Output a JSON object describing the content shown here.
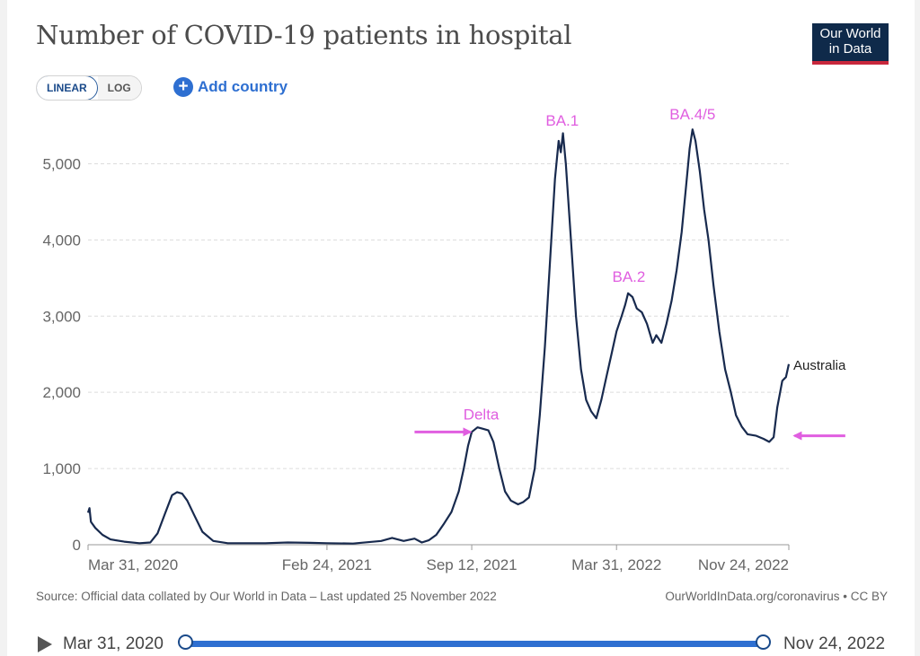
{
  "header": {
    "title": "Number of COVID-19 patients in hospital",
    "logo_line1": "Our World",
    "logo_line2": "in Data"
  },
  "controls": {
    "linear_label": "LINEAR",
    "log_label": "LOG",
    "add_country_label": "Add country",
    "active_scale": "linear"
  },
  "footer": {
    "source": "Source: Official data collated by Our World in Data – Last updated 25 November 2022",
    "credit": "OurWorldInData.org/coronavirus • CC BY"
  },
  "timeline": {
    "start_label": "Mar 31, 2020",
    "end_label": "Nov 24, 2022"
  },
  "chart_data": {
    "type": "line",
    "title": "Number of COVID-19 patients in hospital",
    "ylim": [
      0,
      5500
    ],
    "xlim": [
      "2020-03-31",
      "2022-11-24"
    ],
    "yticks": [
      0,
      1000,
      2000,
      3000,
      4000,
      5000
    ],
    "ytick_labels": [
      "0",
      "1,000",
      "2,000",
      "3,000",
      "4,000",
      "5,000"
    ],
    "xticks": [
      "2020-03-31",
      "2021-02-24",
      "2021-09-12",
      "2022-03-31",
      "2022-11-24"
    ],
    "xtick_labels": [
      "Mar 31, 2020",
      "Feb 24, 2021",
      "Sep 12, 2021",
      "Mar 31, 2022",
      "Nov 24, 2022"
    ],
    "grid": "horizontal dashed",
    "line_color": "#182a4e",
    "annotation_color": "#e05ee0",
    "series": [
      {
        "name": "Australia",
        "points": [
          [
            "2020-03-31",
            420
          ],
          [
            "2020-04-02",
            480
          ],
          [
            "2020-04-04",
            300
          ],
          [
            "2020-04-10",
            220
          ],
          [
            "2020-04-20",
            130
          ],
          [
            "2020-05-01",
            70
          ],
          [
            "2020-05-20",
            40
          ],
          [
            "2020-06-10",
            20
          ],
          [
            "2020-06-25",
            30
          ],
          [
            "2020-07-05",
            150
          ],
          [
            "2020-07-15",
            400
          ],
          [
            "2020-07-25",
            650
          ],
          [
            "2020-08-01",
            690
          ],
          [
            "2020-08-08",
            670
          ],
          [
            "2020-08-15",
            580
          ],
          [
            "2020-08-25",
            380
          ],
          [
            "2020-09-05",
            170
          ],
          [
            "2020-09-20",
            50
          ],
          [
            "2020-10-10",
            20
          ],
          [
            "2020-12-01",
            20
          ],
          [
            "2021-01-01",
            30
          ],
          [
            "2021-02-01",
            25
          ],
          [
            "2021-02-24",
            20
          ],
          [
            "2021-04-01",
            15
          ],
          [
            "2021-05-10",
            50
          ],
          [
            "2021-05-25",
            90
          ],
          [
            "2021-06-10",
            50
          ],
          [
            "2021-06-25",
            80
          ],
          [
            "2021-07-05",
            30
          ],
          [
            "2021-07-15",
            60
          ],
          [
            "2021-07-25",
            130
          ],
          [
            "2021-08-05",
            280
          ],
          [
            "2021-08-15",
            430
          ],
          [
            "2021-08-25",
            700
          ],
          [
            "2021-09-01",
            1000
          ],
          [
            "2021-09-07",
            1300
          ],
          [
            "2021-09-12",
            1480
          ],
          [
            "2021-09-20",
            1540
          ],
          [
            "2021-09-28",
            1520
          ],
          [
            "2021-10-05",
            1500
          ],
          [
            "2021-10-12",
            1350
          ],
          [
            "2021-10-20",
            1000
          ],
          [
            "2021-10-28",
            700
          ],
          [
            "2021-11-05",
            580
          ],
          [
            "2021-11-15",
            530
          ],
          [
            "2021-11-22",
            560
          ],
          [
            "2021-11-30",
            620
          ],
          [
            "2021-12-08",
            1000
          ],
          [
            "2021-12-15",
            1700
          ],
          [
            "2021-12-22",
            2600
          ],
          [
            "2021-12-29",
            3700
          ],
          [
            "2022-01-05",
            4800
          ],
          [
            "2022-01-10",
            5300
          ],
          [
            "2022-01-13",
            5150
          ],
          [
            "2022-01-16",
            5400
          ],
          [
            "2022-01-20",
            5000
          ],
          [
            "2022-01-27",
            4000
          ],
          [
            "2022-02-03",
            3000
          ],
          [
            "2022-02-10",
            2300
          ],
          [
            "2022-02-17",
            1900
          ],
          [
            "2022-02-24",
            1750
          ],
          [
            "2022-03-03",
            1660
          ],
          [
            "2022-03-10",
            1900
          ],
          [
            "2022-03-17",
            2200
          ],
          [
            "2022-03-24",
            2500
          ],
          [
            "2022-03-31",
            2800
          ],
          [
            "2022-04-07",
            3000
          ],
          [
            "2022-04-12",
            3150
          ],
          [
            "2022-04-16",
            3300
          ],
          [
            "2022-04-22",
            3250
          ],
          [
            "2022-04-28",
            3100
          ],
          [
            "2022-05-05",
            3050
          ],
          [
            "2022-05-12",
            2900
          ],
          [
            "2022-05-20",
            2650
          ],
          [
            "2022-05-25",
            2750
          ],
          [
            "2022-06-01",
            2650
          ],
          [
            "2022-06-08",
            2900
          ],
          [
            "2022-06-15",
            3200
          ],
          [
            "2022-06-22",
            3600
          ],
          [
            "2022-06-29",
            4100
          ],
          [
            "2022-07-05",
            4700
          ],
          [
            "2022-07-10",
            5200
          ],
          [
            "2022-07-14",
            5450
          ],
          [
            "2022-07-18",
            5300
          ],
          [
            "2022-07-24",
            4900
          ],
          [
            "2022-07-30",
            4400
          ],
          [
            "2022-08-05",
            4000
          ],
          [
            "2022-08-12",
            3400
          ],
          [
            "2022-08-20",
            2800
          ],
          [
            "2022-08-28",
            2300
          ],
          [
            "2022-09-05",
            2000
          ],
          [
            "2022-09-12",
            1700
          ],
          [
            "2022-09-20",
            1550
          ],
          [
            "2022-09-28",
            1450
          ],
          [
            "2022-10-10",
            1430
          ],
          [
            "2022-10-20",
            1390
          ],
          [
            "2022-10-28",
            1350
          ],
          [
            "2022-11-03",
            1410
          ],
          [
            "2022-11-08",
            1800
          ],
          [
            "2022-11-15",
            2150
          ],
          [
            "2022-11-20",
            2200
          ],
          [
            "2022-11-24",
            2370
          ]
        ]
      }
    ],
    "annotations": [
      {
        "label": "Delta",
        "x": "2021-09-25",
        "y": 1640
      },
      {
        "label": "BA.1",
        "x": "2022-01-15",
        "y": 5500
      },
      {
        "label": "BA.2",
        "x": "2022-04-17",
        "y": 3450
      },
      {
        "label": "BA.4/5",
        "x": "2022-07-14",
        "y": 5580
      }
    ],
    "arrows": [
      {
        "from": [
          "2021-06-25",
          1480
        ],
        "to": [
          "2021-09-10",
          1480
        ]
      },
      {
        "from": [
          "2023-02-10",
          1430
        ],
        "to": [
          "2022-12-02",
          1430
        ]
      }
    ]
  }
}
